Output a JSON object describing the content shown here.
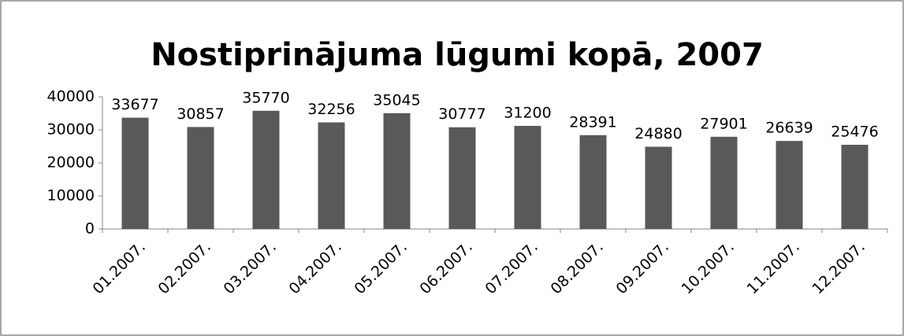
{
  "chart_data": {
    "type": "bar",
    "title": "Nostiprinājuma lūgumi kopā, 2007",
    "categories": [
      "01.2007.",
      "02.2007.",
      "03.2007.",
      "04.2007.",
      "05.2007.",
      "06.2007.",
      "07.2007.",
      "08.2007.",
      "09.2007.",
      "10.2007.",
      "11.2007.",
      "12.2007."
    ],
    "values": [
      33677,
      30857,
      35770,
      32256,
      35045,
      30777,
      31200,
      28391,
      24880,
      27901,
      26639,
      25476
    ],
    "color": "#595959",
    "ylim": [
      0,
      40000
    ],
    "yticks": [
      0,
      10000,
      20000,
      30000,
      40000
    ],
    "grid": false
  }
}
